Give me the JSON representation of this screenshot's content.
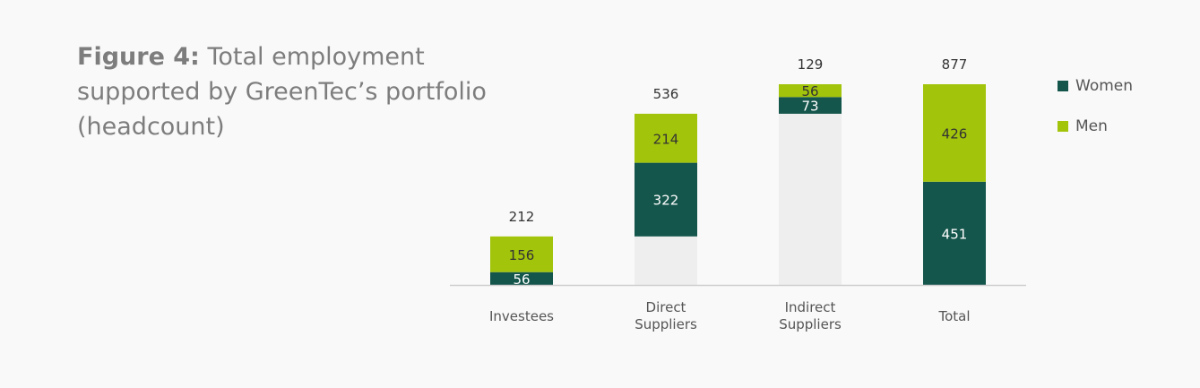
{
  "title": {
    "prefix": "Figure 4:",
    "text": " Total employment supported by GreenTec’s portfolio (headcount)"
  },
  "colors": {
    "women": "#15564c",
    "men": "#a2c40b",
    "offset": "#eeeeee",
    "axis": "#cfcfcf",
    "text": "#555555"
  },
  "chart_data": {
    "type": "bar",
    "subtype": "waterfall-stacked",
    "categories": [
      [
        "Investees"
      ],
      [
        "Direct",
        "Suppliers"
      ],
      [
        "Indirect",
        "Suppliers"
      ],
      [
        "Total"
      ]
    ],
    "series": [
      {
        "name": "Women",
        "values": [
          56,
          322,
          73,
          451
        ]
      },
      {
        "name": "Men",
        "values": [
          156,
          214,
          56,
          426
        ]
      }
    ],
    "totals": [
      212,
      536,
      129,
      877
    ],
    "base_offsets": [
      0,
      212,
      748,
      0
    ],
    "ylim": [
      0,
      877
    ],
    "grid": false,
    "legend_position": "right"
  },
  "legend": [
    {
      "label": "Women",
      "color": "#15564c"
    },
    {
      "label": "Men",
      "color": "#a2c40b"
    }
  ]
}
